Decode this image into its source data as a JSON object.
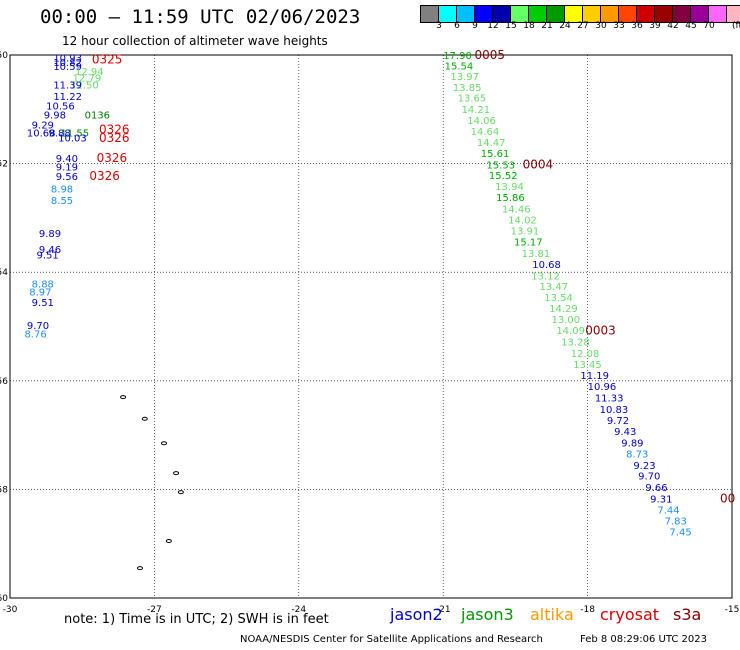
{
  "header": {
    "title": "00:00 – 11:59 UTC 02/06/2023",
    "subtitle": "12 hour collection of altimeter wave heights"
  },
  "colorbar": {
    "colors": [
      "#808080",
      "#00ffff",
      "#00bfff",
      "#0000ff",
      "#0000aa",
      "#66ff66",
      "#00cc00",
      "#009900",
      "#ffff00",
      "#ffcc00",
      "#ff9900",
      "#ff4500",
      "#cc0000",
      "#990000",
      "#800040",
      "#990099",
      "#ff66ff",
      "#ffb6c1",
      "#000000"
    ],
    "labels": [
      "3",
      "6",
      "9",
      "12",
      "15",
      "18",
      "21",
      "24",
      "27",
      "30",
      "33",
      "36",
      "39",
      "42",
      "45",
      "70"
    ],
    "unit": "(ft)"
  },
  "axes": {
    "lat_labels": [
      "-50",
      "-52",
      "-54",
      "-56",
      "-58",
      "-60"
    ],
    "lon_labels": [
      "-30",
      "-27",
      "-24",
      "-21",
      "-18",
      "-15"
    ]
  },
  "chart_data": {
    "type": "scatter",
    "xlabel": "",
    "ylabel": "",
    "xlim": [
      -30,
      -15
    ],
    "ylim": [
      -60,
      -50
    ],
    "grid": true,
    "east_track": [
      {
        "lon": -21.0,
        "lat": -50.07,
        "v": "17.90",
        "c": "#00aa00"
      },
      {
        "lon": -20.97,
        "lat": -50.27,
        "v": "15.54",
        "c": "#00aa00"
      },
      {
        "lon": -20.85,
        "lat": -50.46,
        "v": "13.97",
        "c": "#66dd66"
      },
      {
        "lon": -20.8,
        "lat": -50.66,
        "v": "13.85",
        "c": "#66dd66"
      },
      {
        "lon": -20.7,
        "lat": -50.86,
        "v": "13.65",
        "c": "#66dd66"
      },
      {
        "lon": -20.62,
        "lat": -51.07,
        "v": "14.21",
        "c": "#66dd66"
      },
      {
        "lon": -20.5,
        "lat": -51.27,
        "v": "14.06",
        "c": "#66dd66"
      },
      {
        "lon": -20.43,
        "lat": -51.47,
        "v": "14.64",
        "c": "#66dd66"
      },
      {
        "lon": -20.3,
        "lat": -51.68,
        "v": "14.47",
        "c": "#66dd66"
      },
      {
        "lon": -20.22,
        "lat": -51.88,
        "v": "15.61",
        "c": "#00aa00"
      },
      {
        "lon": -20.1,
        "lat": -52.09,
        "v": "15.53",
        "c": "#00aa00"
      },
      {
        "lon": -20.05,
        "lat": -52.28,
        "v": "15.52",
        "c": "#00aa00"
      },
      {
        "lon": -19.92,
        "lat": -52.49,
        "v": "13.94",
        "c": "#66dd66"
      },
      {
        "lon": -19.9,
        "lat": -52.69,
        "v": "15.86",
        "c": "#00aa00"
      },
      {
        "lon": -19.78,
        "lat": -52.9,
        "v": "14.46",
        "c": "#66dd66"
      },
      {
        "lon": -19.65,
        "lat": -53.1,
        "v": "14.02",
        "c": "#66dd66"
      },
      {
        "lon": -19.6,
        "lat": -53.31,
        "v": "13.91",
        "c": "#66dd66"
      },
      {
        "lon": -19.53,
        "lat": -53.51,
        "v": "15.17",
        "c": "#00aa00"
      },
      {
        "lon": -19.37,
        "lat": -53.72,
        "v": "13.81",
        "c": "#66dd66"
      },
      {
        "lon": -19.15,
        "lat": -53.92,
        "v": "10.68",
        "c": "#0000cc"
      },
      {
        "lon": -19.17,
        "lat": -54.13,
        "v": "13.12",
        "c": "#66dd66"
      },
      {
        "lon": -19.0,
        "lat": -54.33,
        "v": "13.47",
        "c": "#66dd66"
      },
      {
        "lon": -18.9,
        "lat": -54.53,
        "v": "13.54",
        "c": "#66dd66"
      },
      {
        "lon": -18.8,
        "lat": -54.73,
        "v": "14.29",
        "c": "#66dd66"
      },
      {
        "lon": -18.75,
        "lat": -54.94,
        "v": "13.00",
        "c": "#66dd66"
      },
      {
        "lon": -18.65,
        "lat": -55.14,
        "v": "14.09",
        "c": "#66dd66"
      },
      {
        "lon": -18.55,
        "lat": -55.35,
        "v": "13.28",
        "c": "#66dd66"
      },
      {
        "lon": -18.35,
        "lat": -55.56,
        "v": "12.08",
        "c": "#66dd66"
      },
      {
        "lon": -18.3,
        "lat": -55.76,
        "v": "13.45",
        "c": "#66dd66"
      },
      {
        "lon": -18.15,
        "lat": -55.97,
        "v": "11.19",
        "c": "#0000cc"
      },
      {
        "lon": -18.0,
        "lat": -56.17,
        "v": "10.96",
        "c": "#0000cc"
      },
      {
        "lon": -17.85,
        "lat": -56.38,
        "v": "11.33",
        "c": "#0000cc"
      },
      {
        "lon": -17.75,
        "lat": -56.59,
        "v": "10.83",
        "c": "#0000cc"
      },
      {
        "lon": -17.6,
        "lat": -56.8,
        "v": "9.72",
        "c": "#0000cc"
      },
      {
        "lon": -17.45,
        "lat": -57.0,
        "v": "9.43",
        "c": "#0000cc"
      },
      {
        "lon": -17.3,
        "lat": -57.21,
        "v": "9.89",
        "c": "#0000cc"
      },
      {
        "lon": -17.2,
        "lat": -57.41,
        "v": "8.73",
        "c": "#1e90ff"
      },
      {
        "lon": -17.05,
        "lat": -57.62,
        "v": "9.23",
        "c": "#0000cc"
      },
      {
        "lon": -16.95,
        "lat": -57.82,
        "v": "9.70",
        "c": "#0000cc"
      },
      {
        "lon": -16.8,
        "lat": -58.03,
        "v": "9.66",
        "c": "#0000cc"
      },
      {
        "lon": -16.7,
        "lat": -58.24,
        "v": "9.31",
        "c": "#0000cc"
      },
      {
        "lon": -16.55,
        "lat": -58.44,
        "v": "7.44",
        "c": "#1e90ff"
      },
      {
        "lon": -16.4,
        "lat": -58.65,
        "v": "7.83",
        "c": "#1e90ff"
      },
      {
        "lon": -16.3,
        "lat": -58.85,
        "v": "7.45",
        "c": "#1e90ff"
      }
    ],
    "east_times": [
      {
        "lon": -20.35,
        "lat": -50.07,
        "t": "0005",
        "c": "#880000"
      },
      {
        "lon": -19.35,
        "lat": -52.09,
        "t": "0004",
        "c": "#880000"
      },
      {
        "lon": -18.05,
        "lat": -55.15,
        "t": "0003",
        "c": "#880000"
      },
      {
        "lon": -15.25,
        "lat": -58.24,
        "t": "00",
        "c": "#880000"
      }
    ],
    "west_track": [
      {
        "lon": -29.1,
        "lat": -50.12,
        "v": "10.93",
        "c": "#0000cc"
      },
      {
        "lon": -29.1,
        "lat": -50.2,
        "v": "10.82",
        "c": "#0000cc"
      },
      {
        "lon": -29.1,
        "lat": -50.28,
        "v": "10.59",
        "c": "#0000cc"
      },
      {
        "lon": -28.65,
        "lat": -50.37,
        "v": "12.94",
        "c": "#66dd66"
      },
      {
        "lon": -28.7,
        "lat": -50.49,
        "v": "12.79",
        "c": "#66dd66"
      },
      {
        "lon": -28.75,
        "lat": -50.62,
        "v": "12.50",
        "c": "#66dd66"
      },
      {
        "lon": -29.1,
        "lat": -50.62,
        "v": "11.39",
        "c": "#0000cc"
      },
      {
        "lon": -29.1,
        "lat": -50.83,
        "v": "11.22",
        "c": "#0000cc"
      },
      {
        "lon": -29.25,
        "lat": -51.0,
        "v": "10.56",
        "c": "#0000cc"
      },
      {
        "lon": -29.3,
        "lat": -51.17,
        "v": "9.98",
        "c": "#0000cc"
      },
      {
        "lon": -28.45,
        "lat": -51.17,
        "v": "0136",
        "c": "#007700"
      },
      {
        "lon": -29.55,
        "lat": -51.35,
        "v": "9.29",
        "c": "#0000cc"
      },
      {
        "lon": -29.65,
        "lat": -51.5,
        "v": "10.68",
        "c": "#0000cc"
      },
      {
        "lon": -29.2,
        "lat": -51.5,
        "v": "9.88",
        "c": "#0000cc"
      },
      {
        "lon": -28.95,
        "lat": -51.5,
        "v": "11.55",
        "c": "#008800"
      },
      {
        "lon": -29.0,
        "lat": -51.59,
        "v": "10.03",
        "c": "#0000cc"
      },
      {
        "lon": -29.05,
        "lat": -51.97,
        "v": "9.40",
        "c": "#0000cc"
      },
      {
        "lon": -29.05,
        "lat": -52.13,
        "v": "9.19",
        "c": "#0000cc"
      },
      {
        "lon": -29.05,
        "lat": -52.3,
        "v": "9.56",
        "c": "#0000cc"
      },
      {
        "lon": -29.15,
        "lat": -52.53,
        "v": "8.98",
        "c": "#1e90ff"
      },
      {
        "lon": -29.15,
        "lat": -52.74,
        "v": "8.55",
        "c": "#1e90ff"
      },
      {
        "lon": -29.4,
        "lat": -53.35,
        "v": "9.89",
        "c": "#0000cc"
      },
      {
        "lon": -29.4,
        "lat": -53.65,
        "v": "9.46",
        "c": "#0000cc"
      },
      {
        "lon": -29.45,
        "lat": -53.75,
        "v": "9.51",
        "c": "#0000cc"
      },
      {
        "lon": -29.55,
        "lat": -54.28,
        "v": "8.88",
        "c": "#1e90ff"
      },
      {
        "lon": -29.6,
        "lat": -54.43,
        "v": "8.97",
        "c": "#1e90ff"
      },
      {
        "lon": -29.55,
        "lat": -54.62,
        "v": "9.51",
        "c": "#0000cc"
      },
      {
        "lon": -29.65,
        "lat": -55.05,
        "v": "9.70",
        "c": "#0000cc"
      },
      {
        "lon": -29.7,
        "lat": -55.2,
        "v": "8.76",
        "c": "#1e90ff"
      }
    ],
    "west_times": [
      {
        "lon": -28.3,
        "lat": -50.16,
        "t": "0325",
        "c": "#dd0000"
      },
      {
        "lon": -28.15,
        "lat": -51.45,
        "t": "0326",
        "c": "#dd0000"
      },
      {
        "lon": -28.15,
        "lat": -51.6,
        "t": "0326",
        "c": "#dd0000"
      },
      {
        "lon": -28.2,
        "lat": -51.97,
        "t": "0326",
        "c": "#dd0000"
      },
      {
        "lon": -28.35,
        "lat": -52.3,
        "t": "0326",
        "c": "#dd0000"
      }
    ],
    "islands": [
      {
        "lon": -27.65,
        "lat": -56.3
      },
      {
        "lon": -27.2,
        "lat": -56.7
      },
      {
        "lon": -26.8,
        "lat": -57.15
      },
      {
        "lon": -26.55,
        "lat": -57.7
      },
      {
        "lon": -26.45,
        "lat": -58.05
      },
      {
        "lon": -26.7,
        "lat": -58.95
      },
      {
        "lon": -27.3,
        "lat": -59.45
      }
    ]
  },
  "footer": {
    "note": "note: 1) Time is in UTC; 2) SWH is in feet",
    "satellites": [
      {
        "name": "jason2",
        "color": "#0000cc"
      },
      {
        "name": "jason3",
        "color": "#009900"
      },
      {
        "name": "altika",
        "color": "#ff9900"
      },
      {
        "name": "cryosat",
        "color": "#dd0000"
      },
      {
        "name": "s3a",
        "color": "#880000"
      }
    ],
    "credit": "NOAA/NESDIS Center for Satellite Applications and Research",
    "timestamp": "Feb  8 08:29:06 UTC 2023"
  }
}
